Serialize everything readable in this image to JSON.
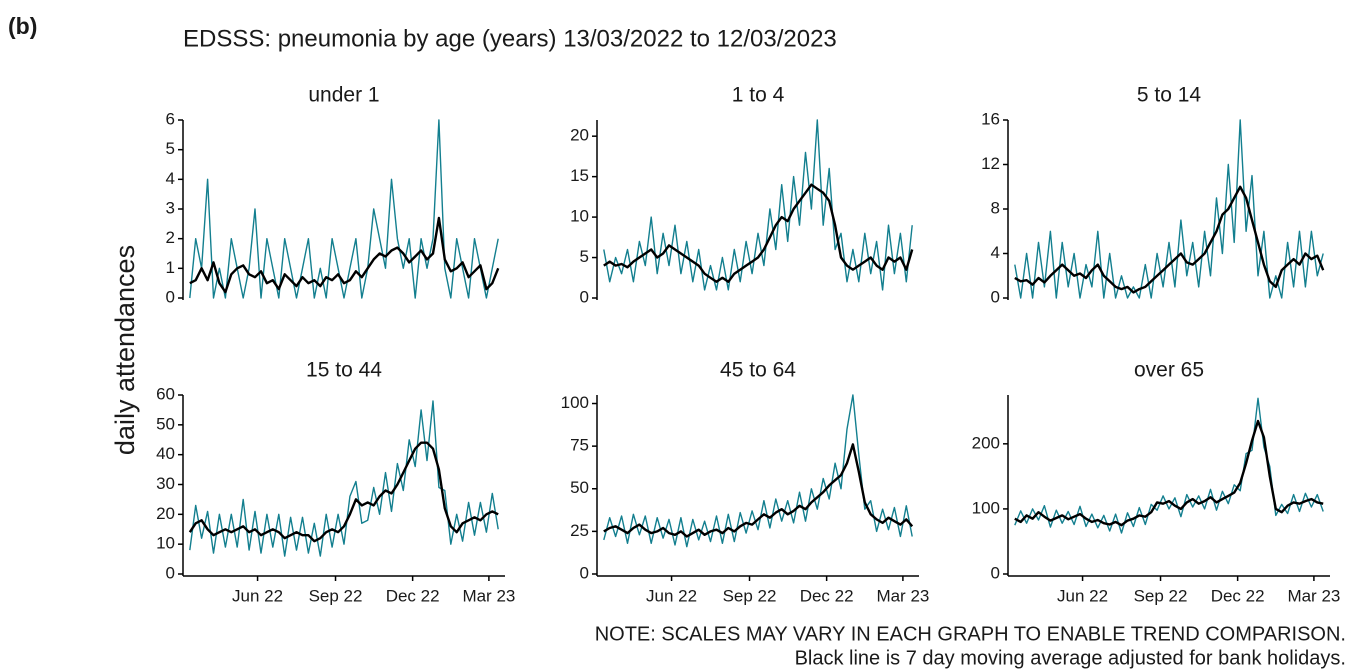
{
  "figure_label": "(b)",
  "title": "EDSSS: pneumonia by age (years) 13/03/2022 to 12/03/2023",
  "y_label": "daily attendances",
  "notes": [
    "NOTE: SCALES MAY VARY IN EACH GRAPH TO ENABLE TREND COMPARISON.",
    "Black line is 7 day moving average adjusted for bank holidays."
  ],
  "chart_data": [
    {
      "type": "line",
      "title": "under 1",
      "x": [
        0,
        7,
        14,
        21,
        28,
        35,
        42,
        49,
        56,
        63,
        70,
        77,
        84,
        91,
        98,
        105,
        112,
        119,
        126,
        133,
        140,
        147,
        154,
        161,
        168,
        175,
        182,
        189,
        196,
        203,
        210,
        217,
        224,
        231,
        238,
        245,
        252,
        259,
        266,
        273,
        280,
        287,
        294,
        301,
        308,
        315,
        322,
        329,
        336,
        343,
        350,
        357,
        364
      ],
      "xlim": [
        -8,
        372
      ],
      "ylim": [
        0,
        6
      ],
      "yticks": [
        0,
        1,
        2,
        3,
        4,
        5,
        6
      ],
      "series": [
        {
          "color": "#137f8f",
          "values": [
            0,
            2,
            1,
            4,
            0,
            1,
            0,
            2,
            1,
            0,
            1,
            3,
            0,
            2,
            1,
            0,
            2,
            1,
            0,
            1,
            2,
            0,
            1,
            0,
            2,
            1,
            0,
            1,
            2,
            0,
            1,
            3,
            2,
            1,
            4,
            2,
            1,
            2,
            0,
            2,
            1,
            2,
            6,
            1,
            0,
            2,
            1,
            0,
            2,
            1,
            0,
            1,
            2
          ]
        },
        {
          "color": "#000000",
          "values": [
            0.5,
            0.6,
            1.0,
            0.6,
            1.2,
            0.5,
            0.2,
            0.8,
            1.0,
            1.1,
            0.8,
            0.7,
            0.9,
            0.5,
            0.6,
            0.3,
            0.8,
            0.6,
            0.4,
            0.7,
            0.5,
            0.6,
            0.4,
            0.7,
            0.6,
            0.8,
            0.5,
            0.6,
            0.9,
            0.7,
            1.0,
            1.3,
            1.5,
            1.4,
            1.6,
            1.7,
            1.5,
            1.2,
            1.4,
            1.6,
            1.3,
            1.5,
            2.7,
            1.3,
            0.9,
            1.0,
            1.2,
            0.7,
            0.9,
            1.1,
            0.3,
            0.5,
            1.0
          ]
        }
      ]
    },
    {
      "type": "line",
      "title": "1 to 4",
      "x": [
        0,
        7,
        14,
        21,
        28,
        35,
        42,
        49,
        56,
        63,
        70,
        77,
        84,
        91,
        98,
        105,
        112,
        119,
        126,
        133,
        140,
        147,
        154,
        161,
        168,
        175,
        182,
        189,
        196,
        203,
        210,
        217,
        224,
        231,
        238,
        245,
        252,
        259,
        266,
        273,
        280,
        287,
        294,
        301,
        308,
        315,
        322,
        329,
        336,
        343,
        350,
        357,
        364
      ],
      "xlim": [
        -8,
        372
      ],
      "ylim": [
        0,
        22
      ],
      "yticks": [
        0,
        5,
        10,
        15,
        20
      ],
      "series": [
        {
          "color": "#137f8f",
          "values": [
            6,
            2,
            5,
            3,
            6,
            2,
            7,
            4,
            10,
            3,
            8,
            4,
            9,
            3,
            7,
            2,
            6,
            1,
            4,
            1,
            5,
            1,
            6,
            2,
            7,
            3,
            8,
            4,
            11,
            6,
            14,
            7,
            15,
            9,
            18,
            11,
            22,
            9,
            16,
            6,
            8,
            2,
            6,
            2,
            8,
            3,
            7,
            1,
            9,
            3,
            8,
            2,
            9
          ]
        },
        {
          "color": "#000000",
          "values": [
            4,
            4.5,
            4,
            4.2,
            3.8,
            4.5,
            5,
            5.5,
            6,
            5,
            5.5,
            6.5,
            6,
            5.5,
            5,
            4.5,
            4,
            3,
            2.5,
            2,
            2.5,
            2,
            3,
            3.5,
            4,
            4.5,
            5,
            6,
            7.5,
            9,
            10,
            9.5,
            11,
            12,
            13,
            14,
            13.5,
            13,
            12,
            9,
            5,
            4,
            3.5,
            4,
            4.5,
            5,
            4,
            3.5,
            5,
            4.5,
            5,
            3.5,
            6
          ]
        }
      ]
    },
    {
      "type": "line",
      "title": "5 to 14",
      "x": [
        0,
        7,
        14,
        21,
        28,
        35,
        42,
        49,
        56,
        63,
        70,
        77,
        84,
        91,
        98,
        105,
        112,
        119,
        126,
        133,
        140,
        147,
        154,
        161,
        168,
        175,
        182,
        189,
        196,
        203,
        210,
        217,
        224,
        231,
        238,
        245,
        252,
        259,
        266,
        273,
        280,
        287,
        294,
        301,
        308,
        315,
        322,
        329,
        336,
        343,
        350,
        357,
        364
      ],
      "xlim": [
        -8,
        372
      ],
      "ylim": [
        0,
        16
      ],
      "yticks": [
        0,
        4,
        8,
        12,
        16
      ],
      "series": [
        {
          "color": "#137f8f",
          "values": [
            3,
            0,
            4,
            0,
            5,
            1,
            6,
            0,
            5,
            1,
            4,
            0,
            3,
            1,
            6,
            0,
            4,
            0,
            2,
            0,
            1,
            0,
            3,
            0,
            4,
            1,
            5,
            1,
            7,
            2,
            5,
            1,
            6,
            2,
            9,
            4,
            12,
            5,
            16,
            6,
            11,
            2,
            6,
            0,
            2,
            0,
            5,
            1,
            6,
            1,
            6,
            2,
            4
          ]
        },
        {
          "color": "#000000",
          "values": [
            1.8,
            1.5,
            1.6,
            1.2,
            1.8,
            1.4,
            2,
            2.5,
            3,
            2.5,
            2,
            2.2,
            1.8,
            2.5,
            3,
            2,
            1.5,
            1,
            0.8,
            1,
            0.5,
            0.8,
            1,
            1.5,
            2,
            2.5,
            3,
            3.5,
            4,
            3.2,
            3,
            3.5,
            4,
            5,
            6,
            7.5,
            8,
            9,
            10,
            9,
            7,
            5,
            3,
            1.5,
            1,
            2.5,
            3,
            3.5,
            3,
            4,
            3.5,
            3.8,
            2.5
          ]
        }
      ]
    },
    {
      "type": "line",
      "title": "15 to 44",
      "x": [
        0,
        7,
        14,
        21,
        28,
        35,
        42,
        49,
        56,
        63,
        70,
        77,
        84,
        91,
        98,
        105,
        112,
        119,
        126,
        133,
        140,
        147,
        154,
        161,
        168,
        175,
        182,
        189,
        196,
        203,
        210,
        217,
        224,
        231,
        238,
        245,
        252,
        259,
        266,
        273,
        280,
        287,
        294,
        301,
        308,
        315,
        322,
        329,
        336,
        343,
        350,
        357,
        364
      ],
      "xlim": [
        -8,
        372
      ],
      "ylim": [
        0,
        60
      ],
      "yticks": [
        0,
        10,
        20,
        30,
        40,
        50,
        60
      ],
      "xticks": [
        {
          "value": 80,
          "label": "Jun 22"
        },
        {
          "value": 172,
          "label": "Sep 22"
        },
        {
          "value": 263,
          "label": "Dec 22"
        },
        {
          "value": 353,
          "label": "Mar 23"
        }
      ],
      "series": [
        {
          "color": "#137f8f",
          "values": [
            8,
            23,
            12,
            21,
            7,
            20,
            9,
            20,
            9,
            25,
            8,
            21,
            7,
            20,
            9,
            20,
            6,
            19,
            8,
            19,
            7,
            17,
            6,
            20,
            9,
            20,
            10,
            26,
            31,
            17,
            18,
            29,
            20,
            34,
            21,
            37,
            28,
            45,
            36,
            55,
            38,
            58,
            29,
            28,
            10,
            20,
            11,
            24,
            13,
            24,
            14,
            27,
            15
          ]
        },
        {
          "color": "#000000",
          "values": [
            14,
            17,
            18,
            15,
            13,
            14,
            15,
            14,
            15,
            16,
            14,
            15,
            13,
            14,
            15,
            14,
            12,
            13,
            14,
            13,
            13,
            11,
            12,
            14,
            15,
            14,
            16,
            20,
            25,
            23,
            24,
            23,
            26,
            28,
            27,
            30,
            34,
            38,
            42,
            44,
            44,
            42,
            35,
            22,
            16,
            14,
            17,
            18,
            19,
            18,
            20,
            21,
            20
          ]
        }
      ]
    },
    {
      "type": "line",
      "title": "45 to 64",
      "x": [
        0,
        7,
        14,
        21,
        28,
        35,
        42,
        49,
        56,
        63,
        70,
        77,
        84,
        91,
        98,
        105,
        112,
        119,
        126,
        133,
        140,
        147,
        154,
        161,
        168,
        175,
        182,
        189,
        196,
        203,
        210,
        217,
        224,
        231,
        238,
        245,
        252,
        259,
        266,
        273,
        280,
        287,
        294,
        301,
        308,
        315,
        322,
        329,
        336,
        343,
        350,
        357,
        364
      ],
      "xlim": [
        -8,
        372
      ],
      "ylim": [
        0,
        105
      ],
      "yticks": [
        0,
        25,
        50,
        75,
        100
      ],
      "xticks": [
        {
          "value": 80,
          "label": "Jun 22"
        },
        {
          "value": 172,
          "label": "Sep 22"
        },
        {
          "value": 263,
          "label": "Dec 22"
        },
        {
          "value": 353,
          "label": "Mar 23"
        }
      ],
      "series": [
        {
          "color": "#137f8f",
          "values": [
            20,
            33,
            22,
            34,
            18,
            35,
            23,
            34,
            18,
            33,
            21,
            32,
            17,
            33,
            16,
            32,
            20,
            31,
            19,
            34,
            18,
            35,
            19,
            36,
            24,
            37,
            26,
            43,
            27,
            44,
            31,
            43,
            30,
            48,
            31,
            50,
            38,
            56,
            44,
            65,
            50,
            85,
            105,
            70,
            38,
            43,
            25,
            38,
            26,
            39,
            22,
            40,
            22
          ]
        },
        {
          "color": "#000000",
          "values": [
            25,
            27,
            28,
            26,
            24,
            27,
            29,
            26,
            24,
            25,
            27,
            24,
            23,
            25,
            22,
            24,
            26,
            23,
            25,
            26,
            24,
            27,
            25,
            28,
            30,
            29,
            32,
            35,
            33,
            36,
            38,
            35,
            37,
            40,
            38,
            42,
            45,
            48,
            52,
            55,
            58,
            65,
            76,
            60,
            42,
            35,
            32,
            30,
            33,
            31,
            29,
            32,
            28
          ]
        }
      ]
    },
    {
      "type": "line",
      "title": "over 65",
      "x": [
        0,
        7,
        14,
        21,
        28,
        35,
        42,
        49,
        56,
        63,
        70,
        77,
        84,
        91,
        98,
        105,
        112,
        119,
        126,
        133,
        140,
        147,
        154,
        161,
        168,
        175,
        182,
        189,
        196,
        203,
        210,
        217,
        224,
        231,
        238,
        245,
        252,
        259,
        266,
        273,
        280,
        287,
        294,
        301,
        308,
        315,
        322,
        329,
        336,
        343,
        350,
        357,
        364
      ],
      "xlim": [
        -8,
        372
      ],
      "ylim": [
        0,
        275
      ],
      "yticks": [
        0,
        100,
        200
      ],
      "xticks": [
        {
          "value": 80,
          "label": "Jun 22"
        },
        {
          "value": 172,
          "label": "Sep 22"
        },
        {
          "value": 263,
          "label": "Dec 22"
        },
        {
          "value": 353,
          "label": "Mar 23"
        }
      ],
      "series": [
        {
          "color": "#137f8f",
          "values": [
            75,
            97,
            78,
            100,
            83,
            105,
            72,
            98,
            78,
            96,
            76,
            104,
            73,
            92,
            71,
            90,
            66,
            92,
            63,
            94,
            73,
            102,
            76,
            107,
            98,
            120,
            100,
            117,
            88,
            122,
            103,
            120,
            100,
            130,
            98,
            127,
            108,
            137,
            128,
            185,
            190,
            270,
            195,
            165,
            90,
            107,
            93,
            122,
            96,
            124,
            103,
            122,
            96
          ]
        },
        {
          "color": "#000000",
          "values": [
            85,
            80,
            90,
            85,
            95,
            88,
            82,
            86,
            90,
            84,
            88,
            92,
            85,
            80,
            83,
            78,
            76,
            80,
            75,
            82,
            85,
            90,
            88,
            95,
            110,
            108,
            112,
            105,
            100,
            110,
            115,
            108,
            112,
            118,
            110,
            115,
            120,
            125,
            140,
            170,
            205,
            235,
            210,
            150,
            100,
            95,
            105,
            110,
            108,
            112,
            115,
            110,
            108
          ]
        }
      ]
    }
  ]
}
